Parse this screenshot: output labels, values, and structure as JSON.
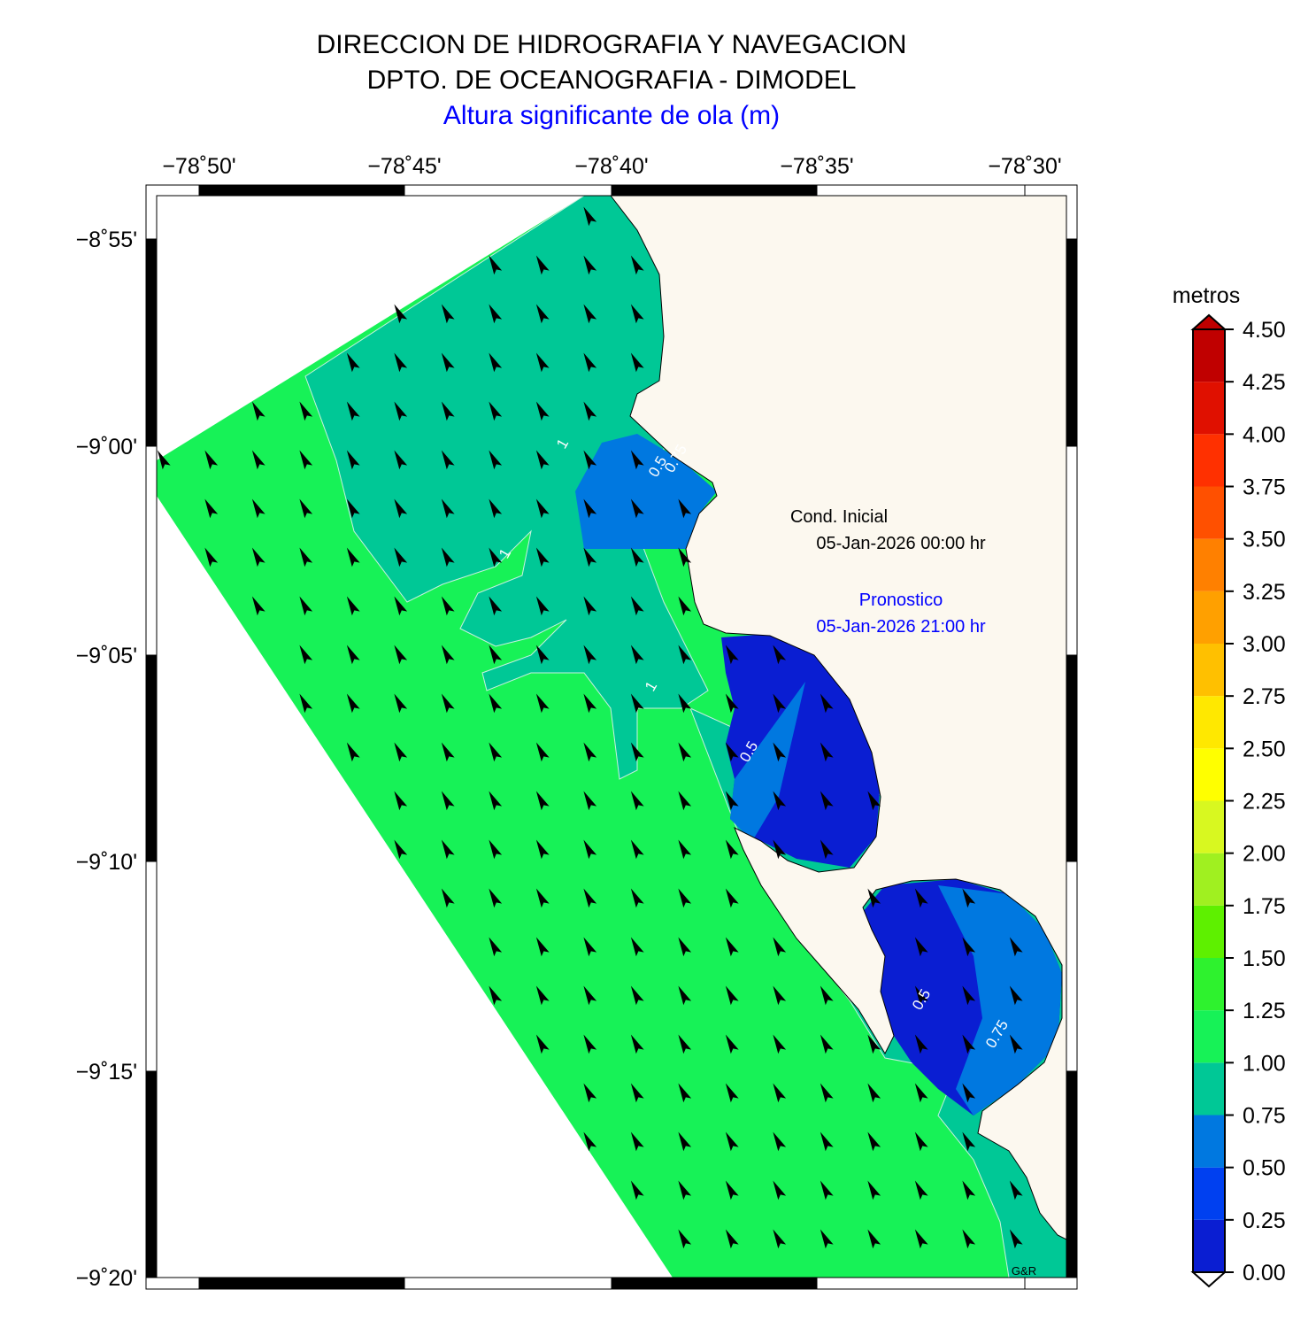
{
  "header": {
    "line1": "DIRECCION DE HIDROGRAFIA Y NAVEGACION",
    "line2": "DPTO. DE OCEANOGRAFIA - DIMODEL",
    "subtitle": "Altura significante de ola (m)"
  },
  "map": {
    "lon_ticks": [
      "−78˚50'",
      "−78˚45'",
      "−78˚40'",
      "−78˚35'",
      "−78˚30'"
    ],
    "lat_ticks": [
      "−8˚55'",
      "−9˚00'",
      "−9˚05'",
      "−9˚10'",
      "−9˚15'",
      "−9˚20'"
    ],
    "contour_labels": [
      "1",
      "1",
      "0.5",
      "0.75",
      "1",
      "0.5",
      "0.5",
      "0.75"
    ],
    "annotations": {
      "initial_label": "Cond. Inicial",
      "initial_date": "05-Jan-2026 00:00 hr",
      "forecast_label": "Pronostico",
      "forecast_date": "05-Jan-2026 21:00 hr",
      "credit": "G&R"
    }
  },
  "colorbar": {
    "label": "metros",
    "lim": [
      0,
      4.5
    ],
    "ticks": [
      {
        "value": 0,
        "label": "0.00"
      },
      {
        "value": 0.25,
        "label": "0.25"
      },
      {
        "value": 0.5,
        "label": "0.50"
      },
      {
        "value": 0.75,
        "label": "0.75"
      },
      {
        "value": 1,
        "label": "1.00"
      },
      {
        "value": 1.25,
        "label": "1.25"
      },
      {
        "value": 1.5,
        "label": "1.50"
      },
      {
        "value": 1.75,
        "label": "1.75"
      },
      {
        "value": 2,
        "label": "2.00"
      },
      {
        "value": 2.25,
        "label": "2.25"
      },
      {
        "value": 2.5,
        "label": "2.50"
      },
      {
        "value": 2.75,
        "label": "2.75"
      },
      {
        "value": 3,
        "label": "3.00"
      },
      {
        "value": 3.25,
        "label": "3.25"
      },
      {
        "value": 3.5,
        "label": "3.50"
      },
      {
        "value": 3.75,
        "label": "3.75"
      },
      {
        "value": 4,
        "label": "4.00"
      },
      {
        "value": 4.25,
        "label": "4.25"
      },
      {
        "value": 4.5,
        "label": "4.50"
      }
    ],
    "colors": [
      "#0a1ed2",
      "#0040f0",
      "#0078e0",
      "#00c896",
      "#17f257",
      "#2ef22e",
      "#5ef000",
      "#a0f020",
      "#d8f820",
      "#ffff00",
      "#ffe800",
      "#ffc000",
      "#ffa000",
      "#ff8000",
      "#ff5000",
      "#ff3000",
      "#e01000",
      "#c00000"
    ]
  }
}
